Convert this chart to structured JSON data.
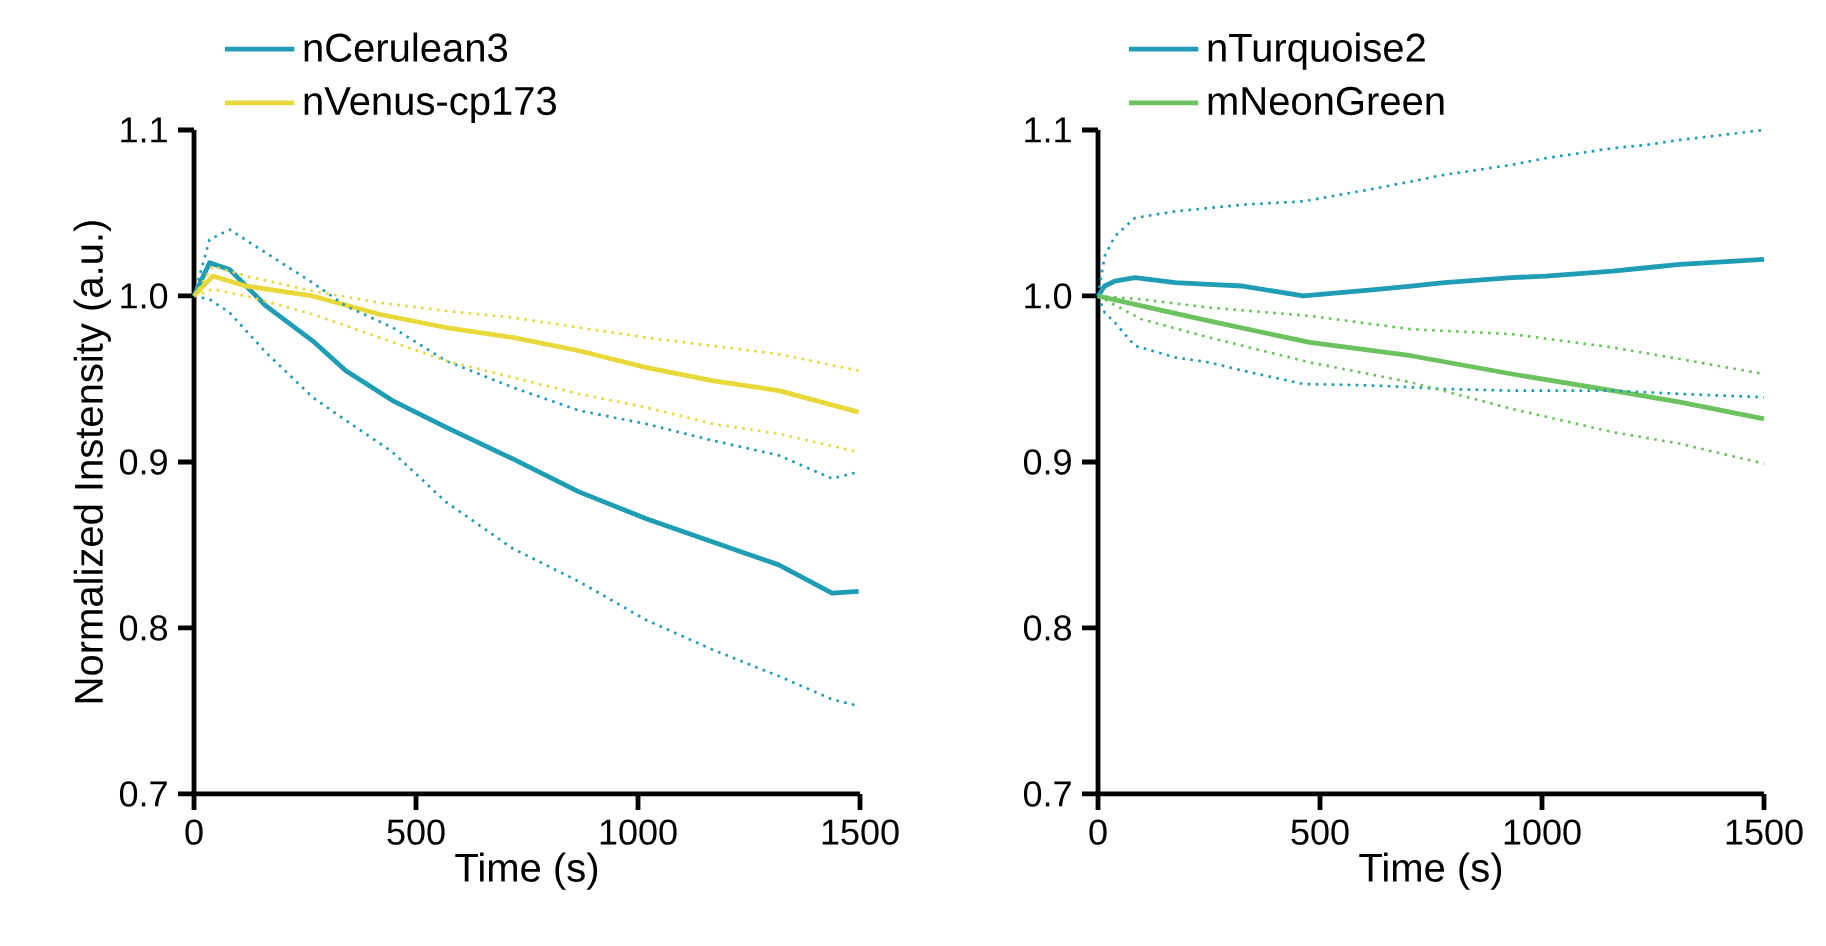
{
  "chart_data": [
    {
      "type": "line",
      "xlabel": "Time (s)",
      "ylabel": "Normalized Instensity (a.u.)",
      "xlim": [
        0,
        1500
      ],
      "ylim": [
        0.7,
        1.1
      ],
      "xticks": [
        0,
        500,
        1000,
        1500
      ],
      "yticks": [
        0.7,
        0.8,
        0.9,
        {
          "value": 1,
          "label": "1.0"
        },
        1.1
      ],
      "legend": "top",
      "line_style": "solid",
      "series": [
        {
          "name": "nCerulean3",
          "color": "#1f9db5",
          "x": [
            0,
            35,
            80,
            162,
            267,
            342,
            447,
            567,
            717,
            867,
            1017,
            1167,
            1317,
            1437,
            1497
          ],
          "values": [
            1.0,
            1.02,
            1.016,
            0.994,
            0.973,
            0.955,
            0.937,
            0.921,
            0.902,
            0.882,
            0.866,
            0.852,
            0.838,
            0.821,
            0.822
          ]
        },
        {
          "name": "nVenus-cp173",
          "color": "#e8d83a",
          "x": [
            0,
            42,
            117,
            267,
            417,
            567,
            717,
            867,
            1017,
            1167,
            1317,
            1497
          ],
          "values": [
            1.0,
            1.012,
            1.006,
            1.0,
            0.989,
            0.981,
            0.975,
            0.967,
            0.957,
            0.949,
            0.943,
            0.93
          ]
        },
        {
          "color": "#1f9db5",
          "line_style": "dotted",
          "x": [
            0,
            35,
            80,
            162,
            267,
            342,
            447,
            567,
            717,
            867,
            1017,
            1167,
            1317,
            1437,
            1497
          ],
          "values": [
            1.0,
            1.034,
            1.04,
            1.026,
            1.008,
            0.994,
            0.981,
            0.961,
            0.945,
            0.931,
            0.923,
            0.913,
            0.904,
            0.89,
            0.894
          ]
        },
        {
          "color": "#1f9db5",
          "line_style": "dotted",
          "x": [
            0,
            35,
            80,
            162,
            267,
            342,
            447,
            567,
            717,
            867,
            1017,
            1167,
            1317,
            1437,
            1497
          ],
          "values": [
            1.0,
            0.998,
            0.99,
            0.966,
            0.939,
            0.925,
            0.906,
            0.876,
            0.848,
            0.828,
            0.805,
            0.787,
            0.771,
            0.757,
            0.753
          ]
        },
        {
          "color": "#e8d83a",
          "line_style": "dotted",
          "x": [
            0,
            42,
            117,
            267,
            417,
            567,
            717,
            867,
            1017,
            1167,
            1317,
            1497
          ],
          "values": [
            1.0,
            1.018,
            1.012,
            1.003,
            0.996,
            0.991,
            0.987,
            0.981,
            0.975,
            0.97,
            0.965,
            0.955
          ]
        },
        {
          "color": "#e8d83a",
          "line_style": "dotted",
          "x": [
            0,
            42,
            117,
            267,
            417,
            567,
            717,
            867,
            1017,
            1167,
            1317,
            1497
          ],
          "values": [
            1.0,
            1.004,
            1.0,
            0.989,
            0.975,
            0.961,
            0.951,
            0.941,
            0.933,
            0.923,
            0.917,
            0.906
          ]
        }
      ]
    },
    {
      "type": "line",
      "xlabel": "Time (s)",
      "xlim": [
        0,
        1500
      ],
      "ylim": [
        0.7,
        1.1
      ],
      "xticks": [
        0,
        500,
        1000,
        1500
      ],
      "yticks": [
        0.7,
        0.8,
        0.9,
        {
          "value": 1,
          "label": "1.0"
        },
        1.1
      ],
      "legend": "top",
      "line_style": "solid",
      "series": [
        {
          "name": "nTurquoise2",
          "color": "#1f9db5",
          "x": [
            0,
            15,
            38,
            83,
            174,
            250,
            326,
            462,
            629,
            705,
            780,
            932,
            1008,
            1159,
            1235,
            1311,
            1500
          ],
          "values": [
            1.0,
            1.006,
            1.009,
            1.011,
            1.008,
            1.007,
            1.006,
            1.0,
            1.004,
            1.006,
            1.008,
            1.011,
            1.012,
            1.015,
            1.017,
            1.019,
            1.022
          ]
        },
        {
          "name": "mNeonGreen",
          "color": "#6cc25f",
          "x": [
            0,
            98,
            250,
            477,
            705,
            932,
            1159,
            1311,
            1500
          ],
          "values": [
            1.0,
            0.994,
            0.985,
            0.972,
            0.964,
            0.953,
            0.943,
            0.936,
            0.926
          ]
        },
        {
          "color": "#1f9db5",
          "line_style": "dotted",
          "x": [
            0,
            15,
            38,
            83,
            174,
            250,
            326,
            462,
            629,
            705,
            780,
            932,
            1008,
            1159,
            1235,
            1311,
            1500
          ],
          "values": [
            1.0,
            1.024,
            1.036,
            1.047,
            1.051,
            1.053,
            1.055,
            1.057,
            1.065,
            1.069,
            1.073,
            1.079,
            1.083,
            1.089,
            1.091,
            1.094,
            1.1
          ]
        },
        {
          "color": "#1f9db5",
          "line_style": "dotted",
          "x": [
            0,
            15,
            38,
            83,
            174,
            250,
            326,
            462,
            629,
            705,
            780,
            932,
            1008,
            1159,
            1235,
            1311,
            1500
          ],
          "values": [
            1.0,
            0.99,
            0.984,
            0.97,
            0.963,
            0.96,
            0.955,
            0.947,
            0.946,
            0.945,
            0.944,
            0.943,
            0.943,
            0.943,
            0.942,
            0.941,
            0.939
          ]
        },
        {
          "color": "#6cc25f",
          "line_style": "dotted",
          "x": [
            0,
            98,
            250,
            477,
            705,
            932,
            1159,
            1311,
            1500
          ],
          "values": [
            1.0,
            0.998,
            0.993,
            0.988,
            0.98,
            0.977,
            0.969,
            0.962,
            0.953
          ]
        },
        {
          "color": "#6cc25f",
          "line_style": "dotted",
          "x": [
            0,
            98,
            250,
            477,
            705,
            932,
            1159,
            1311,
            1500
          ],
          "values": [
            1.0,
            0.986,
            0.975,
            0.96,
            0.948,
            0.932,
            0.918,
            0.911,
            0.899
          ]
        }
      ]
    }
  ]
}
